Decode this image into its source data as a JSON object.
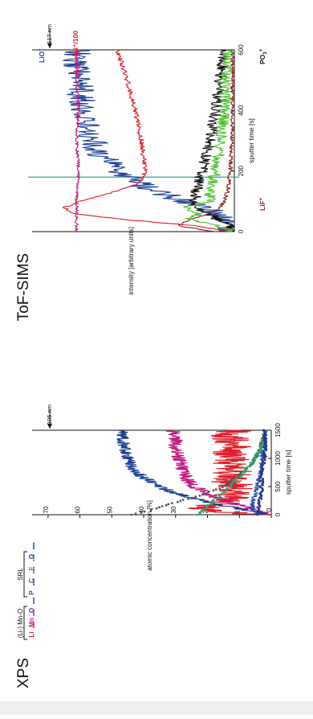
{
  "panels": {
    "xps_label": "XPS",
    "tof_label": "ToF-SIMS"
  },
  "chart_data": [
    {
      "type": "line",
      "panel": "XPS",
      "xlabel": "sputter time [s]",
      "ylabel": "atomic concentration [%]",
      "xlim": [
        0,
        1500
      ],
      "ylim": [
        0,
        75
      ],
      "xticks": [
        "0",
        "500",
        "1000",
        "1500"
      ],
      "yticks": [
        "0",
        "10",
        "20",
        "30",
        "40",
        "50",
        "60",
        "70"
      ],
      "legend_groups": [
        {
          "label": "(Li-) Mn-O",
          "entries": [
            "Li",
            "Mn",
            "O"
          ]
        },
        {
          "label": "SRL",
          "entries": [
            "P",
            "C",
            "F",
            "O"
          ]
        }
      ],
      "annotation": {
        "text": "105 nm",
        "x": 1500
      },
      "series": [
        {
          "name": "Li",
          "color": "#e01e2a",
          "style": "solid",
          "noise": 6.0,
          "x": [
            0,
            50,
            100,
            150,
            200,
            300,
            400,
            500,
            600,
            800,
            1000,
            1200,
            1400,
            1500
          ],
          "y": [
            1,
            15,
            22,
            20,
            14,
            12,
            13,
            11,
            13,
            12,
            13,
            12,
            13,
            12
          ]
        },
        {
          "name": "Mn",
          "color": "#c2187d",
          "style": "solid",
          "noise": 2.2,
          "x": [
            0,
            50,
            100,
            200,
            300,
            400,
            500,
            600,
            800,
            1000,
            1200,
            1400,
            1500
          ],
          "y": [
            1,
            3,
            6,
            12,
            17,
            21,
            24,
            26,
            28,
            29,
            30,
            30,
            31
          ]
        },
        {
          "name": "O",
          "color": "#1c3f94",
          "style": "solid",
          "noise": 2.0,
          "x": [
            0,
            50,
            100,
            200,
            300,
            400,
            500,
            600,
            700,
            800,
            1000,
            1200,
            1400,
            1500
          ],
          "y": [
            2,
            5,
            10,
            18,
            25,
            31,
            35,
            38,
            41,
            43,
            45,
            46,
            47,
            47
          ]
        },
        {
          "name": "P",
          "color": "#2a4fb0",
          "style": "solid",
          "noise": 0.8,
          "x": [
            0,
            50,
            100,
            200,
            400,
            600,
            800,
            1000,
            1200,
            1500
          ],
          "y": [
            5,
            5,
            6,
            6,
            5,
            4,
            3,
            3,
            2,
            2
          ]
        },
        {
          "name": "C",
          "color": "#555555",
          "style": "dotted",
          "noise": 0.6,
          "x": [
            0,
            40,
            80,
            150,
            250,
            350,
            500,
            700,
            900,
            1100,
            1300,
            1500
          ],
          "y": [
            44,
            41,
            38,
            34,
            28,
            22,
            15,
            10,
            6,
            4,
            3,
            2
          ]
        },
        {
          "name": "F",
          "color": "#2aa86a",
          "style": "dotted",
          "noise": 0.6,
          "x": [
            0,
            50,
            100,
            200,
            300,
            400,
            500,
            600,
            800,
            1000,
            1200,
            1500
          ],
          "y": [
            23,
            22,
            21,
            19,
            17,
            15,
            13,
            11,
            8,
            5,
            3,
            2
          ]
        },
        {
          "name": "O (SRL)",
          "color": "#25338c",
          "style": "dotted",
          "noise": 0.5,
          "x": [
            0,
            100,
            200,
            400,
            600,
            800,
            1000,
            1200,
            1500
          ],
          "y": [
            4,
            4,
            4,
            3,
            3,
            3,
            2,
            2,
            2
          ]
        }
      ]
    },
    {
      "type": "line",
      "panel": "ToF-SIMS",
      "xlabel": "sputter time [s]",
      "ylabel": "intensity [arbitrary units]",
      "xlim": [
        0,
        600
      ],
      "ylim": [
        0,
        100
      ],
      "xticks": [
        "0",
        "200",
        "400",
        "600"
      ],
      "vline": {
        "x": 180,
        "color": "#1a9a8a"
      },
      "annotation": {
        "text": "117 nm",
        "x": 600
      },
      "series": [
        {
          "name": "LiO+",
          "label": "LiO",
          "sup": "+",
          "color": "#1c3f94",
          "noise": 7.0,
          "x": [
            0,
            30,
            60,
            100,
            150,
            200,
            250,
            300,
            350,
            400,
            500,
            600
          ],
          "y": [
            1,
            3,
            8,
            25,
            45,
            58,
            66,
            70,
            73,
            75,
            77,
            78
          ]
        },
        {
          "name": "6Li+/100",
          "label": "Li⁺/100",
          "pre": "6",
          "color": "#e01e2a",
          "noise": 1.2,
          "x": [
            0,
            20,
            40,
            60,
            80,
            100,
            130,
            160,
            200,
            300,
            400,
            500,
            600
          ],
          "y": [
            2,
            20,
            55,
            80,
            84,
            76,
            60,
            47,
            44,
            46,
            49,
            53,
            58
          ]
        },
        {
          "name": "MnO+/10",
          "label": "MnO⁺/10",
          "color": "#c2187d",
          "noise": 0.8,
          "x": [
            0,
            100,
            200,
            300,
            400,
            500,
            600
          ],
          "y": [
            78,
            78,
            77,
            78,
            77,
            78,
            78
          ]
        },
        {
          "name": "PO3+",
          "label": "PO",
          "sub": "3",
          "sup": "+",
          "color": "#111111",
          "noise": 3.0,
          "x": [
            0,
            30,
            60,
            100,
            150,
            200,
            300,
            400,
            500,
            600
          ],
          "y": [
            0,
            3,
            14,
            20,
            18,
            16,
            12,
            9,
            7,
            5
          ]
        },
        {
          "name": "LiF+",
          "label": "LiF",
          "sup": "+",
          "color": "#8a1c1c",
          "noise": 1.0,
          "x": [
            0,
            20,
            40,
            60,
            80,
            100,
            140,
            200,
            300,
            400,
            600
          ],
          "y": [
            10,
            28,
            22,
            12,
            7,
            5,
            3,
            2,
            1,
            1,
            1
          ]
        },
        {
          "name": "green",
          "label": "",
          "color": "#4cc22c",
          "noise": 3.0,
          "x": [
            0,
            20,
            40,
            60,
            80,
            100,
            150,
            200,
            300,
            400,
            500,
            600
          ],
          "y": [
            0,
            8,
            22,
            18,
            25,
            12,
            12,
            9,
            7,
            5,
            4,
            3
          ]
        }
      ]
    }
  ]
}
